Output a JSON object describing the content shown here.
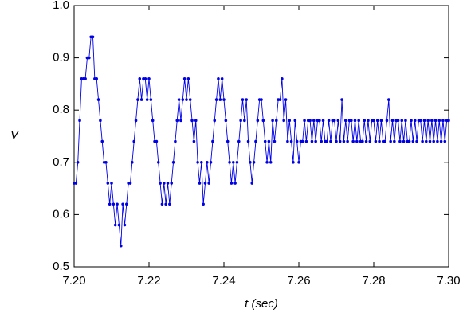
{
  "chart_data": {
    "type": "line",
    "xlabel": "t (sec)",
    "ylabel": "V",
    "xlim": [
      7.2,
      7.3
    ],
    "xticks": [
      {
        "value": 7.2,
        "label": "7.20"
      },
      7.22,
      7.24,
      7.26,
      7.28,
      {
        "value": 7.3,
        "label": "7.30"
      }
    ],
    "ylim": [
      0.5,
      1.0
    ],
    "yticks": [
      0.5,
      0.6,
      0.7,
      0.8,
      0.9,
      {
        "value": 1.0,
        "label": "1.0"
      }
    ],
    "series": [
      {
        "color": "#0000e6",
        "x": [
          7.2,
          7.2005,
          7.201,
          7.2015,
          7.202,
          7.2025,
          7.203,
          7.2035,
          7.204,
          7.2045,
          7.205,
          7.2055,
          7.206,
          7.2065,
          7.207,
          7.2075,
          7.208,
          7.2085,
          7.209,
          7.2095,
          7.21,
          7.2105,
          7.211,
          7.2115,
          7.212,
          7.2125,
          7.213,
          7.2135,
          7.214,
          7.2145,
          7.215,
          7.2155,
          7.216,
          7.2165,
          7.217,
          7.2175,
          7.218,
          7.2185,
          7.219,
          7.2195,
          7.22,
          7.2205,
          7.221,
          7.2215,
          7.222,
          7.2225,
          7.223,
          7.2235,
          7.224,
          7.2245,
          7.225,
          7.2255,
          7.226,
          7.2265,
          7.227,
          7.2275,
          7.228,
          7.2285,
          7.229,
          7.2295,
          7.23,
          7.2305,
          7.231,
          7.2315,
          7.232,
          7.2325,
          7.233,
          7.2335,
          7.234,
          7.2345,
          7.235,
          7.2355,
          7.236,
          7.2365,
          7.237,
          7.2375,
          7.238,
          7.2385,
          7.239,
          7.2395,
          7.24,
          7.2405,
          7.241,
          7.2415,
          7.242,
          7.2425,
          7.243,
          7.2435,
          7.244,
          7.2445,
          7.245,
          7.2455,
          7.246,
          7.2465,
          7.247,
          7.2475,
          7.248,
          7.2485,
          7.249,
          7.2495,
          7.25,
          7.2505,
          7.251,
          7.2515,
          7.252,
          7.2525,
          7.253,
          7.2535,
          7.254,
          7.2545,
          7.255,
          7.2555,
          7.256,
          7.2565,
          7.257,
          7.2575,
          7.258,
          7.2585,
          7.259,
          7.2595,
          7.26,
          7.2605,
          7.261,
          7.2615,
          7.262,
          7.2625,
          7.263,
          7.2635,
          7.264,
          7.2645,
          7.265,
          7.2655,
          7.266,
          7.2665,
          7.267,
          7.2675,
          7.268,
          7.2685,
          7.269,
          7.2695,
          7.27,
          7.2705,
          7.271,
          7.2715,
          7.272,
          7.2725,
          7.273,
          7.2735,
          7.274,
          7.2745,
          7.275,
          7.2755,
          7.276,
          7.2765,
          7.277,
          7.2775,
          7.278,
          7.2785,
          7.279,
          7.2795,
          7.28,
          7.2805,
          7.281,
          7.2815,
          7.282,
          7.2825,
          7.283,
          7.2835,
          7.284,
          7.2845,
          7.285,
          7.2855,
          7.286,
          7.2865,
          7.287,
          7.2875,
          7.288,
          7.2885,
          7.289,
          7.2895,
          7.29,
          7.2905,
          7.291,
          7.2915,
          7.292,
          7.2925,
          7.293,
          7.2935,
          7.294,
          7.2945,
          7.295,
          7.2955,
          7.296,
          7.2965,
          7.297,
          7.2975,
          7.298,
          7.2985,
          7.299,
          7.2995,
          7.3
        ],
        "values": [
          0.66,
          0.66,
          0.7,
          0.78,
          0.86,
          0.86,
          0.86,
          0.9,
          0.9,
          0.94,
          0.94,
          0.86,
          0.86,
          0.82,
          0.78,
          0.74,
          0.7,
          0.7,
          0.66,
          0.62,
          0.66,
          0.62,
          0.58,
          0.62,
          0.58,
          0.54,
          0.62,
          0.58,
          0.62,
          0.66,
          0.66,
          0.7,
          0.74,
          0.78,
          0.82,
          0.86,
          0.82,
          0.86,
          0.86,
          0.82,
          0.86,
          0.82,
          0.78,
          0.74,
          0.74,
          0.7,
          0.66,
          0.62,
          0.66,
          0.62,
          0.66,
          0.62,
          0.66,
          0.7,
          0.74,
          0.78,
          0.82,
          0.78,
          0.82,
          0.86,
          0.82,
          0.86,
          0.82,
          0.78,
          0.74,
          0.78,
          0.7,
          0.66,
          0.7,
          0.62,
          0.66,
          0.7,
          0.66,
          0.7,
          0.74,
          0.78,
          0.82,
          0.86,
          0.82,
          0.86,
          0.82,
          0.78,
          0.74,
          0.7,
          0.66,
          0.7,
          0.66,
          0.7,
          0.74,
          0.78,
          0.82,
          0.78,
          0.82,
          0.74,
          0.7,
          0.66,
          0.7,
          0.74,
          0.78,
          0.82,
          0.82,
          0.78,
          0.74,
          0.7,
          0.74,
          0.7,
          0.78,
          0.74,
          0.78,
          0.82,
          0.82,
          0.86,
          0.78,
          0.82,
          0.74,
          0.78,
          0.74,
          0.7,
          0.78,
          0.74,
          0.7,
          0.74,
          0.74,
          0.78,
          0.74,
          0.78,
          0.78,
          0.74,
          0.78,
          0.74,
          0.78,
          0.78,
          0.74,
          0.78,
          0.74,
          0.74,
          0.78,
          0.74,
          0.78,
          0.78,
          0.74,
          0.78,
          0.74,
          0.82,
          0.74,
          0.78,
          0.74,
          0.78,
          0.78,
          0.74,
          0.78,
          0.74,
          0.78,
          0.74,
          0.74,
          0.78,
          0.74,
          0.78,
          0.74,
          0.78,
          0.78,
          0.74,
          0.78,
          0.74,
          0.78,
          0.74,
          0.74,
          0.78,
          0.82,
          0.74,
          0.78,
          0.74,
          0.78,
          0.78,
          0.74,
          0.78,
          0.74,
          0.78,
          0.74,
          0.74,
          0.78,
          0.74,
          0.78,
          0.74,
          0.78,
          0.78,
          0.74,
          0.78,
          0.74,
          0.78,
          0.74,
          0.78,
          0.74,
          0.78,
          0.74,
          0.78,
          0.74,
          0.78,
          0.74,
          0.78,
          0.78
        ]
      }
    ]
  }
}
